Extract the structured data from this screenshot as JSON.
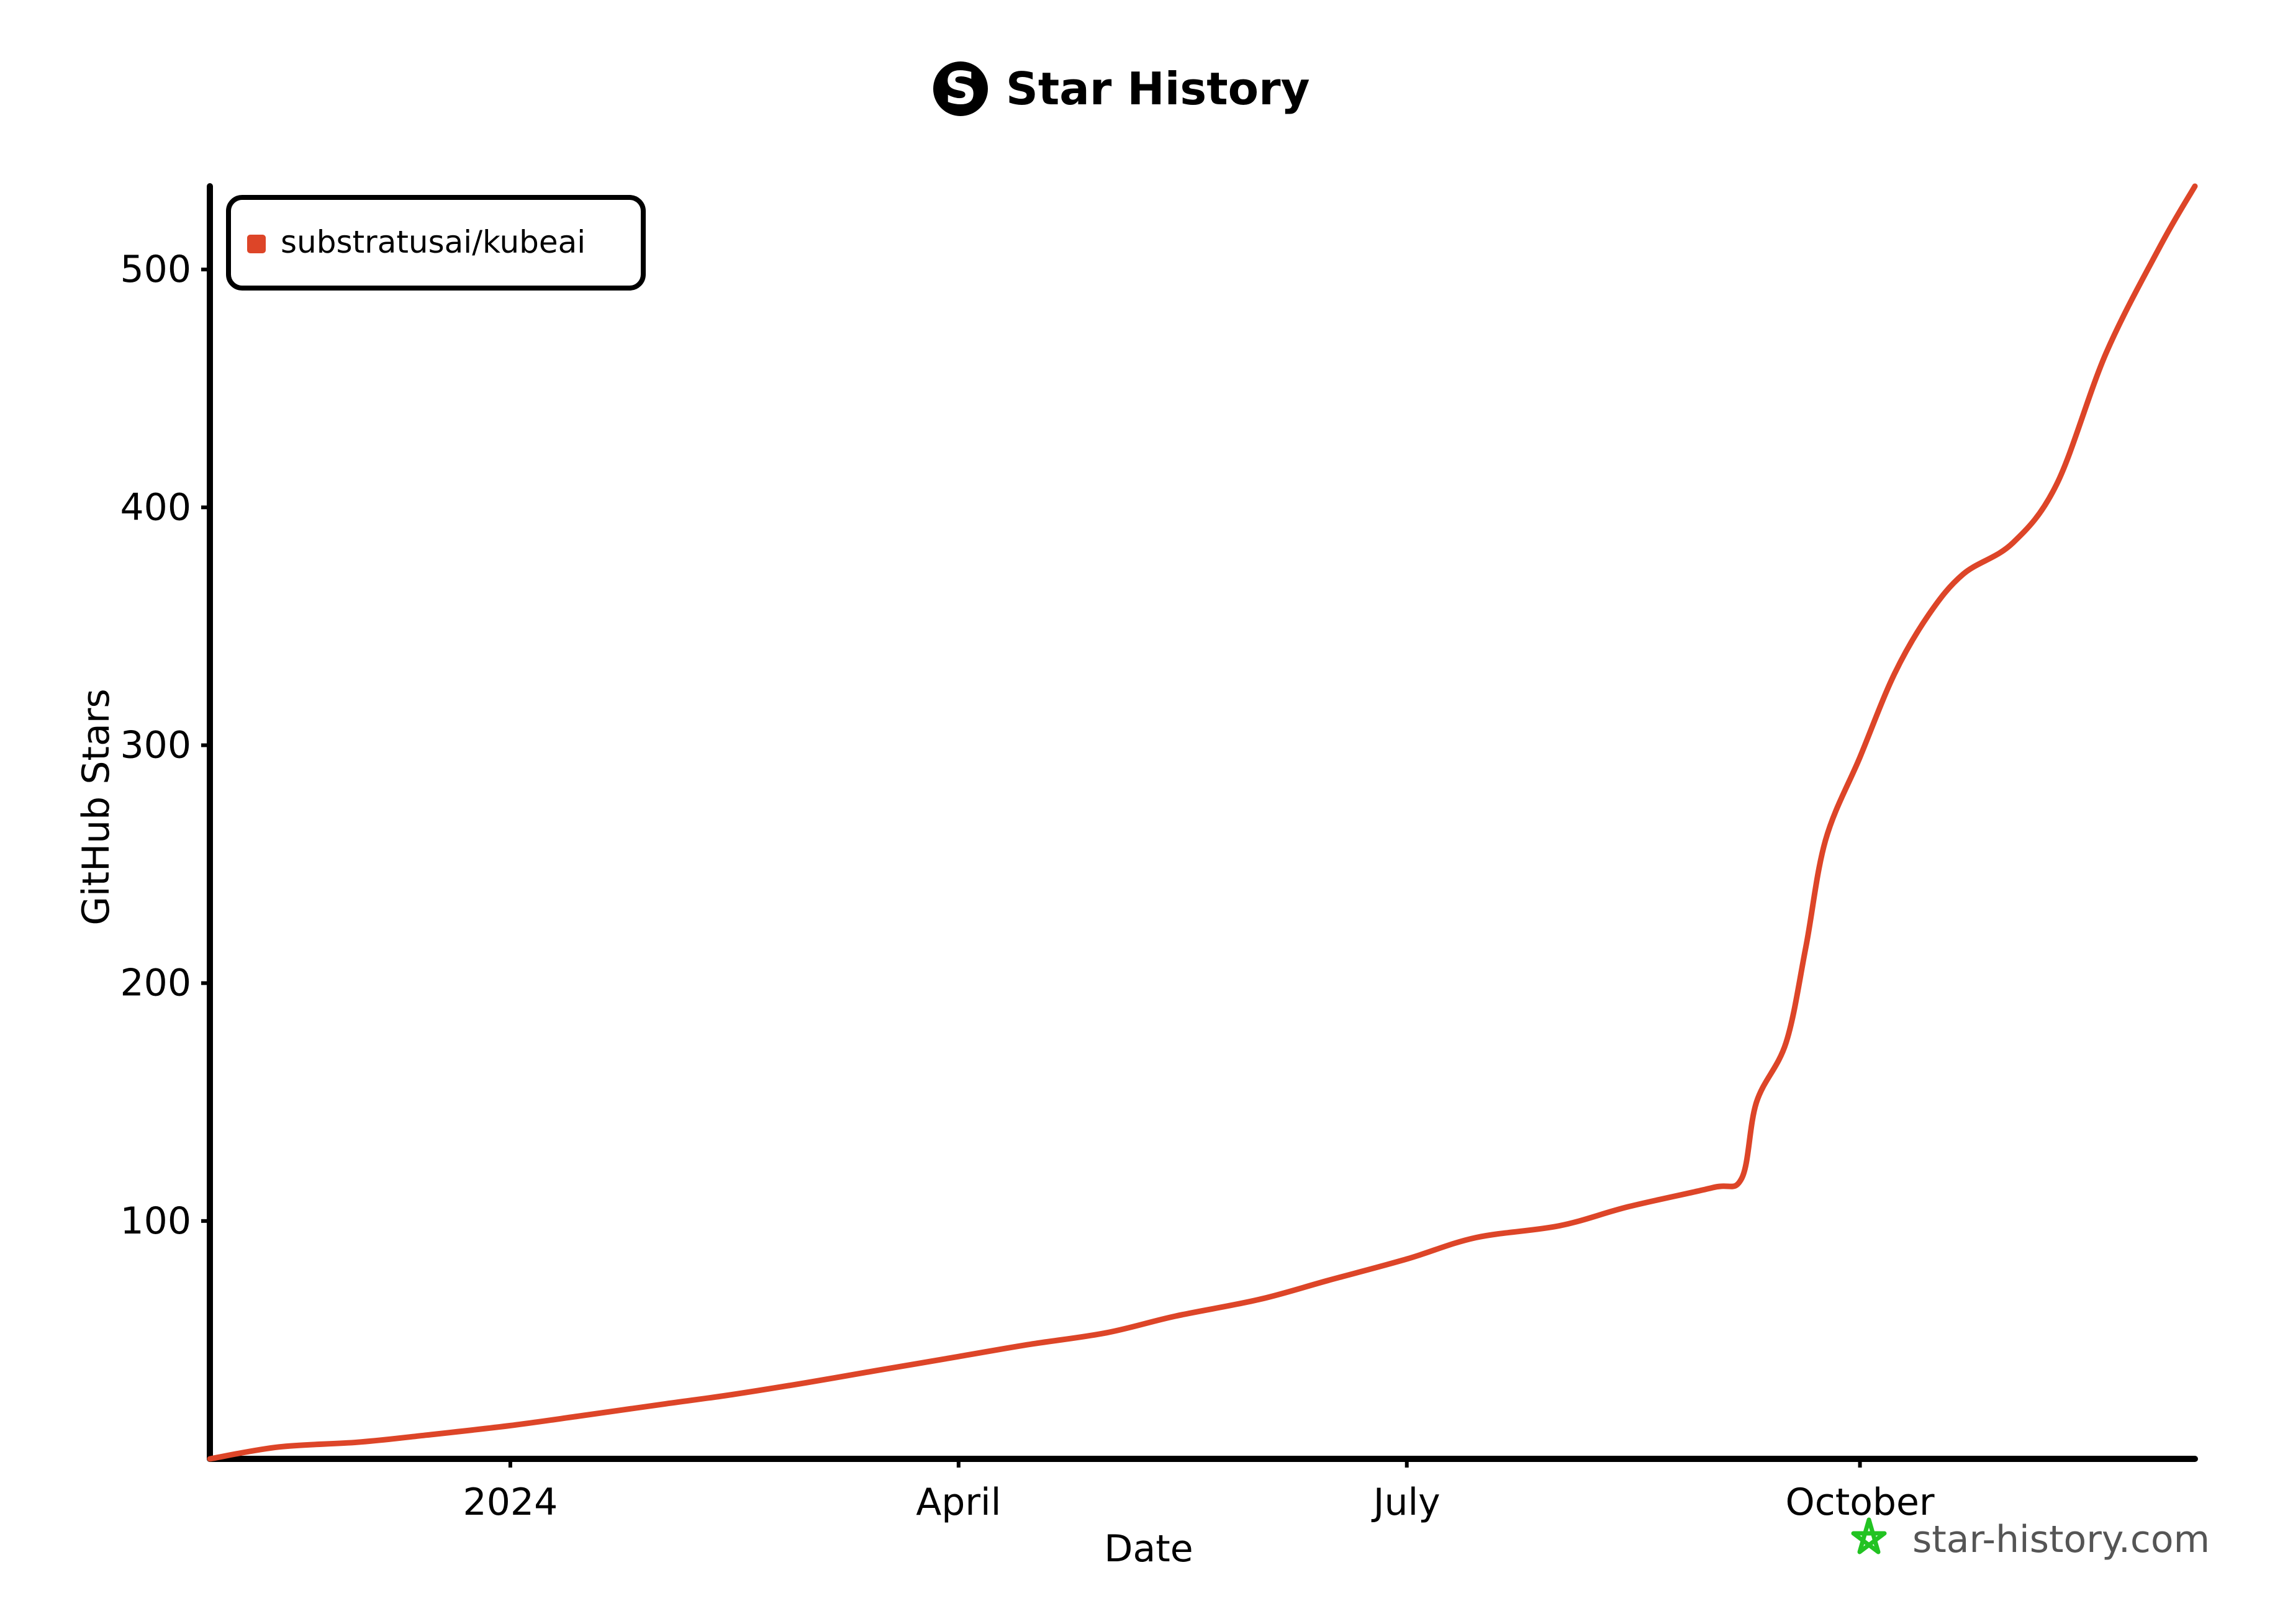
{
  "title": "Star History",
  "logo_letter": "S",
  "footer": "star-history.com",
  "chart_data": {
    "type": "line",
    "title": "Star History",
    "xlabel": "Date",
    "ylabel": "GitHub Stars",
    "x_ticks": [
      "2024",
      "April",
      "July",
      "October"
    ],
    "x_tick_dates": [
      "2024-01-01",
      "2024-04-01",
      "2024-07-01",
      "2024-10-01"
    ],
    "y_ticks": [
      100,
      200,
      300,
      400,
      500
    ],
    "xlim": [
      "2023-11-01",
      "2024-12-08"
    ],
    "ylim": [
      0,
      535
    ],
    "legend": "top-left",
    "grid": false,
    "series": [
      {
        "name": "substratusai/kubeai",
        "color": "#dd4528",
        "points": [
          [
            "2023-11-01",
            0
          ],
          [
            "2023-11-15",
            5
          ],
          [
            "2023-12-01",
            7
          ],
          [
            "2023-12-15",
            10
          ],
          [
            "2024-01-01",
            14
          ],
          [
            "2024-01-15",
            18
          ],
          [
            "2024-02-01",
            23
          ],
          [
            "2024-02-15",
            27
          ],
          [
            "2024-03-01",
            32
          ],
          [
            "2024-03-15",
            37
          ],
          [
            "2024-04-01",
            43
          ],
          [
            "2024-04-15",
            48
          ],
          [
            "2024-05-01",
            53
          ],
          [
            "2024-05-15",
            60
          ],
          [
            "2024-06-01",
            67
          ],
          [
            "2024-06-15",
            75
          ],
          [
            "2024-07-01",
            84
          ],
          [
            "2024-07-15",
            93
          ],
          [
            "2024-08-01",
            98
          ],
          [
            "2024-08-15",
            106
          ],
          [
            "2024-09-01",
            114
          ],
          [
            "2024-09-07",
            118
          ],
          [
            "2024-09-10",
            150
          ],
          [
            "2024-09-16",
            175
          ],
          [
            "2024-09-20",
            215
          ],
          [
            "2024-09-24",
            260
          ],
          [
            "2024-10-01",
            295
          ],
          [
            "2024-10-08",
            330
          ],
          [
            "2024-10-15",
            355
          ],
          [
            "2024-10-22",
            372
          ],
          [
            "2024-11-01",
            385
          ],
          [
            "2024-11-10",
            410
          ],
          [
            "2024-11-20",
            465
          ],
          [
            "2024-12-01",
            510
          ],
          [
            "2024-12-08",
            535
          ]
        ]
      }
    ]
  }
}
